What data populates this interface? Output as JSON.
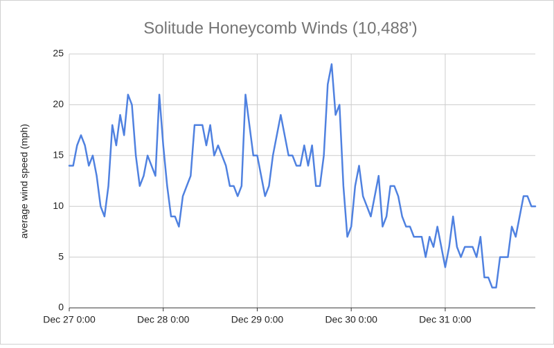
{
  "chart_data": {
    "type": "line",
    "title": "Solitude Honeycomb Winds (10,488')",
    "y_label": "average wind speed (mph)",
    "categories": [
      "Dec 27 0:00",
      null,
      null,
      null,
      null,
      null,
      null,
      null,
      null,
      null,
      null,
      null,
      null,
      null,
      null,
      null,
      null,
      null,
      null,
      null,
      null,
      null,
      null,
      null,
      "Dec 28 0:00",
      null,
      null,
      null,
      null,
      null,
      null,
      null,
      null,
      null,
      null,
      null,
      null,
      null,
      null,
      null,
      null,
      null,
      null,
      null,
      null,
      null,
      null,
      null,
      "Dec 29 0:00",
      null,
      null,
      null,
      null,
      null,
      null,
      null,
      null,
      null,
      null,
      null,
      null,
      null,
      null,
      null,
      null,
      null,
      null,
      null,
      null,
      null,
      null,
      null,
      "Dec 30 0:00",
      null,
      null,
      null,
      null,
      null,
      null,
      null,
      null,
      null,
      null,
      null,
      null,
      null,
      null,
      null,
      null,
      null,
      null,
      null,
      null,
      null,
      null,
      null,
      "Dec 31 0:00",
      null,
      null,
      null,
      null,
      null,
      null,
      null,
      null,
      null,
      null,
      null,
      null,
      null,
      null,
      null,
      null,
      null,
      null,
      null,
      null,
      null,
      null,
      null
    ],
    "series": [
      {
        "name": "average wind speed (mph)",
        "color": "#4f81e0",
        "values": [
          14,
          14,
          16,
          17,
          16,
          14,
          15,
          13,
          10,
          9,
          12,
          18,
          16,
          19,
          17,
          21,
          20,
          15,
          12,
          13,
          15,
          14,
          13,
          21,
          16,
          12,
          9,
          9,
          8,
          11,
          12,
          13,
          18,
          18,
          18,
          16,
          18,
          15,
          16,
          15,
          14,
          12,
          12,
          11,
          12,
          21,
          18,
          15,
          15,
          13,
          11,
          12,
          15,
          17,
          19,
          17,
          15,
          15,
          14,
          14,
          16,
          14,
          16,
          12,
          12,
          15,
          22,
          24,
          19,
          20,
          12,
          7,
          8,
          12,
          14,
          11,
          10,
          9,
          11,
          13,
          8,
          9,
          12,
          12,
          11,
          9,
          8,
          8,
          7,
          7,
          7,
          5,
          7,
          6,
          8,
          6,
          4,
          6,
          9,
          6,
          5,
          6,
          6,
          6,
          5,
          7,
          3,
          3,
          2,
          2,
          5,
          5,
          5,
          8,
          7,
          9,
          11,
          11,
          10,
          10
        ]
      }
    ],
    "ylim": [
      0,
      25
    ],
    "yticks": [
      0,
      5,
      10,
      15,
      20,
      25
    ],
    "grid": true
  }
}
